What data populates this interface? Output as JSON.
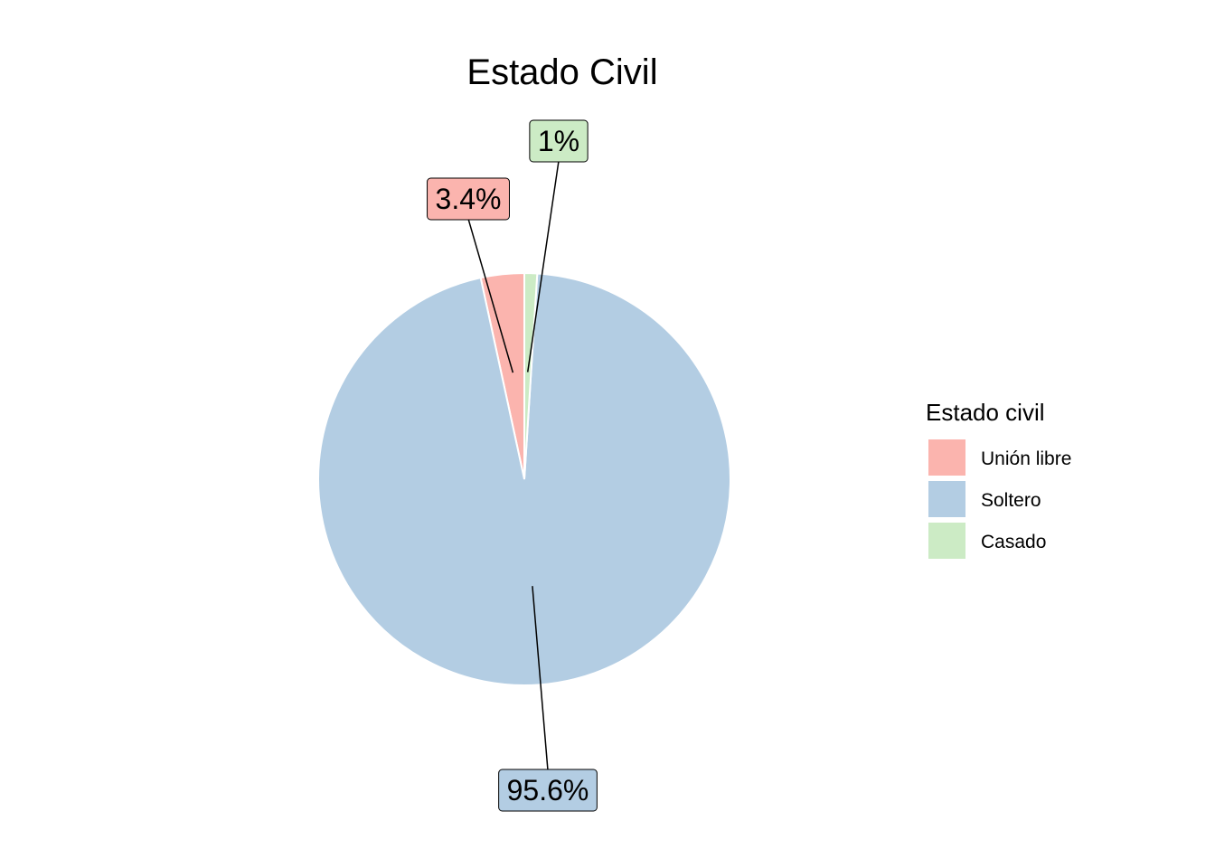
{
  "chart_data": {
    "type": "pie",
    "title": "Estado Civil",
    "legend_title": "Estado civil",
    "legend_position": "right",
    "slices": [
      {
        "name": "Unión libre",
        "value": 3.4,
        "label": "3.4%",
        "color": "#FBB4AE"
      },
      {
        "name": "Soltero",
        "value": 95.6,
        "label": "95.6%",
        "color": "#B3CDE3"
      },
      {
        "name": "Casado",
        "value": 1.0,
        "label": "1%",
        "color": "#CCEBC5"
      }
    ],
    "line_color": "#000000",
    "slice_border_color": "#ffffff"
  }
}
